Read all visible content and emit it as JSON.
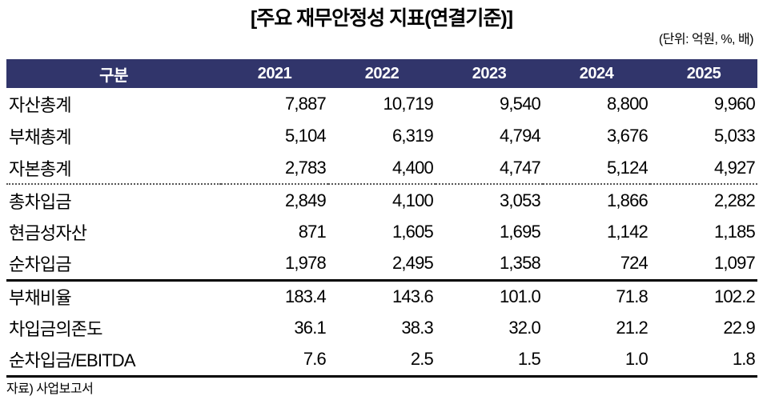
{
  "title": "[주요 재무안정성 지표(연결기준)]",
  "unit_note": "(단위: 억원, %, 배)",
  "source_note": "자료) 사업보고서",
  "colors": {
    "header_bg": "#31356B",
    "header_text": "#FFFFFF",
    "rule": "#000000"
  },
  "chart_data": {
    "type": "table",
    "title": "[주요 재무안정성 지표(연결기준)]",
    "unit": "억원, %, 배",
    "source": "사업보고서",
    "columns": [
      "구분",
      "2021",
      "2022",
      "2023",
      "2024",
      "2025"
    ],
    "sections": [
      {
        "divider_above": "none",
        "rows": [
          {
            "label": "자산총계",
            "values": [
              "7,887",
              "10,719",
              "9,540",
              "8,800",
              "9,960"
            ]
          },
          {
            "label": "부채총계",
            "values": [
              "5,104",
              "6,319",
              "4,794",
              "3,676",
              "5,033"
            ]
          },
          {
            "label": "자본총계",
            "values": [
              "2,783",
              "4,400",
              "4,747",
              "5,124",
              "4,927"
            ]
          }
        ]
      },
      {
        "divider_above": "dotted",
        "rows": [
          {
            "label": "총차입금",
            "values": [
              "2,849",
              "4,100",
              "3,053",
              "1,866",
              "2,282"
            ]
          },
          {
            "label": "현금성자산",
            "values": [
              "871",
              "1,605",
              "1,695",
              "1,142",
              "1,185"
            ]
          },
          {
            "label": "순차입금",
            "values": [
              "1,978",
              "2,495",
              "1,358",
              "724",
              "1,097"
            ]
          }
        ]
      },
      {
        "divider_above": "solid",
        "rows": [
          {
            "label": "부채비율",
            "values": [
              "183.4",
              "143.6",
              "101.0",
              "71.8",
              "102.2"
            ]
          },
          {
            "label": "차입금의존도",
            "values": [
              "36.1",
              "38.3",
              "32.0",
              "21.2",
              "22.9"
            ]
          },
          {
            "label": "순차입금/EBITDA",
            "values": [
              "7.6",
              "2.5",
              "1.5",
              "1.0",
              "1.8"
            ]
          }
        ]
      }
    ]
  }
}
